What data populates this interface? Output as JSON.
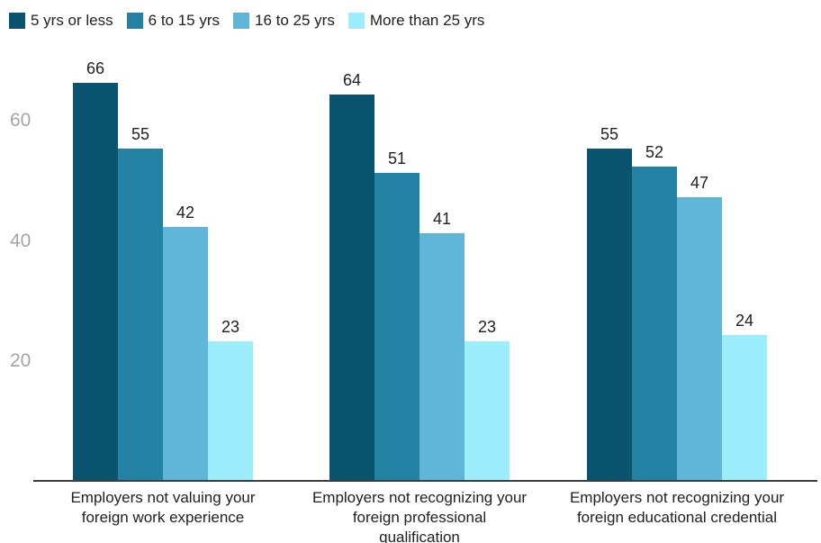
{
  "chart_data": {
    "type": "bar",
    "legend_position": "top-left",
    "grid": false,
    "value_labels_shown": true,
    "ylim": [
      0,
      80
    ],
    "y_ticks": [
      20,
      40,
      60
    ],
    "categories": [
      "Employers not valuing your foreign work experience",
      "Employers not recognizing your foreign professional qualification",
      "Employers not recognizing your foreign educational credential"
    ],
    "category_display_lines": [
      [
        "Employers not valuing your",
        "foreign work experience"
      ],
      [
        "Employers not recognizing your",
        "foreign professional",
        "qualification"
      ],
      [
        "Employers not recognizing your",
        "foreign educational credential"
      ]
    ],
    "series": [
      {
        "name": "5 yrs or less",
        "color": "#0a5470",
        "values": [
          66,
          64,
          55
        ]
      },
      {
        "name": "6 to 15 yrs",
        "color": "#2382a4",
        "values": [
          55,
          51,
          52
        ]
      },
      {
        "name": "16 to 25 yrs",
        "color": "#60b6d9",
        "values": [
          42,
          41,
          47
        ]
      },
      {
        "name": "More than 25 yrs",
        "color": "#9deefc",
        "values": [
          23,
          23,
          24
        ]
      }
    ]
  },
  "colors": {
    "background": "#ffffff",
    "text": "#212121",
    "tick_label": "#a5a5a5",
    "axis_line": "#3d3d3d"
  }
}
